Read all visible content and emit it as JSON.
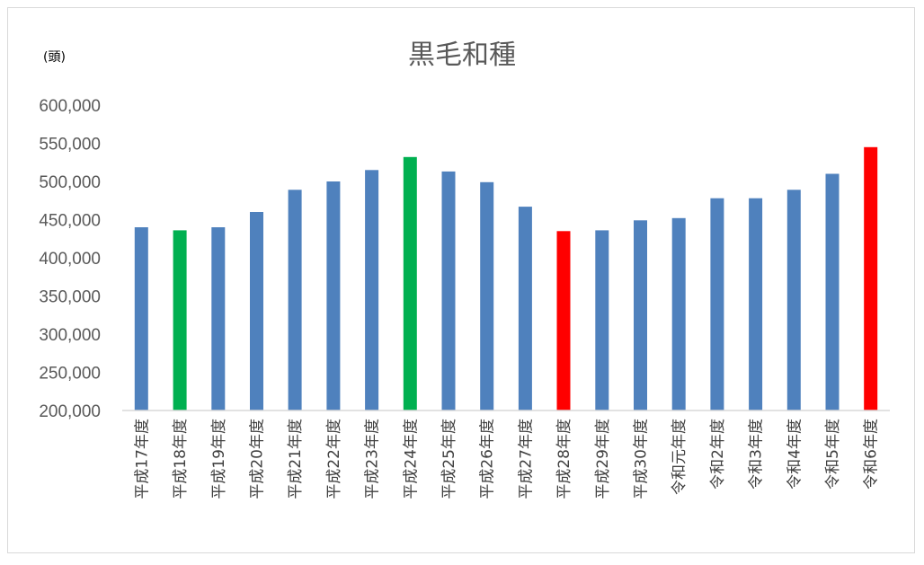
{
  "chart_data": {
    "type": "bar",
    "title": "黒毛和種",
    "unit_label": "(頭)",
    "categories": [
      "平成17年度",
      "平成18年度",
      "平成19年度",
      "平成20年度",
      "平成21年度",
      "平成22年度",
      "平成23年度",
      "平成24年度",
      "平成25年度",
      "平成26年度",
      "平成27年度",
      "平成28年度",
      "平成29年度",
      "平成30年度",
      "令和元年度",
      "令和2年度",
      "令和3年度",
      "令和4年度",
      "令和5年度",
      "令和6年度"
    ],
    "values": [
      440000,
      436000,
      440000,
      460000,
      489000,
      500000,
      515000,
      532000,
      513000,
      499000,
      467000,
      435000,
      436000,
      449000,
      452000,
      478000,
      478000,
      489000,
      510000,
      545000
    ],
    "bar_colors": [
      "#4f81bd",
      "#00b050",
      "#4f81bd",
      "#4f81bd",
      "#4f81bd",
      "#4f81bd",
      "#4f81bd",
      "#00b050",
      "#4f81bd",
      "#4f81bd",
      "#4f81bd",
      "#ff0000",
      "#4f81bd",
      "#4f81bd",
      "#4f81bd",
      "#4f81bd",
      "#4f81bd",
      "#4f81bd",
      "#4f81bd",
      "#ff0000"
    ],
    "ylim": [
      200000,
      600000
    ],
    "yticks": [
      200000,
      250000,
      300000,
      350000,
      400000,
      450000,
      500000,
      550000,
      600000
    ],
    "ytick_labels": [
      "200,000",
      "250,000",
      "300,000",
      "350,000",
      "400,000",
      "450,000",
      "500,000",
      "550,000",
      "600,000"
    ],
    "grid": false,
    "legend": "none"
  }
}
